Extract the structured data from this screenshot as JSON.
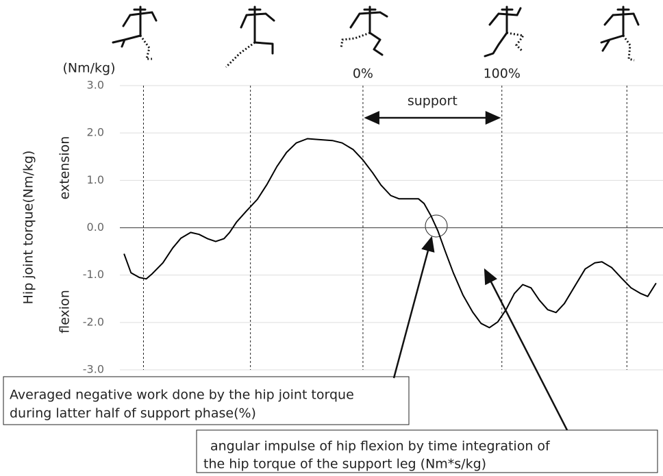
{
  "chart_data": {
    "type": "line",
    "y_unit": "(Nm/kg)",
    "y_label": "Hip joint torque(Nm/kg)",
    "y_region_labels": [
      "extension",
      "flexion"
    ],
    "x": [
      -172,
      -167,
      -161,
      -156,
      -152,
      -144,
      -137,
      -131,
      -124,
      -118,
      -112,
      -106,
      -100,
      -96,
      -91,
      -84,
      -76,
      -69,
      -62,
      -55,
      -48,
      -40,
      -32,
      -22,
      -15,
      -7,
      0,
      7,
      13,
      20,
      26,
      33,
      40,
      44,
      49,
      54,
      59,
      65,
      72,
      79,
      85,
      91,
      97,
      103,
      109,
      115,
      121,
      127,
      133,
      139,
      145,
      153,
      160,
      167,
      172,
      179,
      186,
      193,
      200,
      205,
      211
    ],
    "series": [
      {
        "color": "#000000",
        "values": [
          -0.55,
          -0.95,
          -1.05,
          -1.08,
          -0.98,
          -0.74,
          -0.43,
          -0.22,
          -0.1,
          -0.14,
          -0.23,
          -0.29,
          -0.23,
          -0.1,
          0.12,
          0.35,
          0.6,
          0.92,
          1.29,
          1.59,
          1.79,
          1.88,
          1.86,
          1.84,
          1.79,
          1.65,
          1.43,
          1.16,
          0.9,
          0.68,
          0.61,
          0.61,
          0.61,
          0.51,
          0.25,
          -0.07,
          -0.48,
          -0.95,
          -1.42,
          -1.78,
          -2.02,
          -2.11,
          -1.99,
          -1.73,
          -1.39,
          -1.2,
          -1.27,
          -1.53,
          -1.73,
          -1.79,
          -1.6,
          -1.21,
          -0.87,
          -0.74,
          -0.72,
          -0.84,
          -1.06,
          -1.27,
          -1.39,
          -1.45,
          -1.17
        ]
      }
    ],
    "xlim": [
      -175,
      216
    ],
    "xticks": [
      {
        "value": 0,
        "label": "0%"
      },
      {
        "value": 100,
        "label": "100%"
      }
    ],
    "phase_lines": [
      -158,
      -81,
      0,
      100,
      190
    ],
    "support_label": "support",
    "ylim": [
      -3,
      3
    ],
    "yticks": [
      {
        "value": 3,
        "label": "3.0"
      },
      {
        "value": 2,
        "label": "2.0"
      },
      {
        "value": 1,
        "label": "1.0"
      },
      {
        "value": 0,
        "label": "0.0"
      },
      {
        "value": -1,
        "label": "-1.0"
      },
      {
        "value": -2,
        "label": "-2.0"
      },
      {
        "value": -3,
        "label": "-3.0"
      }
    ],
    "grid": true,
    "annotations": [
      {
        "lines": [
          "Averaged negative work done by the hip joint torque",
          "during latter half of support phase(%)"
        ]
      },
      {
        "lines": [
          "angular impulse of hip flexion by time integration of",
          "the hip torque of the support leg (Nm*s/kg)"
        ]
      }
    ]
  }
}
